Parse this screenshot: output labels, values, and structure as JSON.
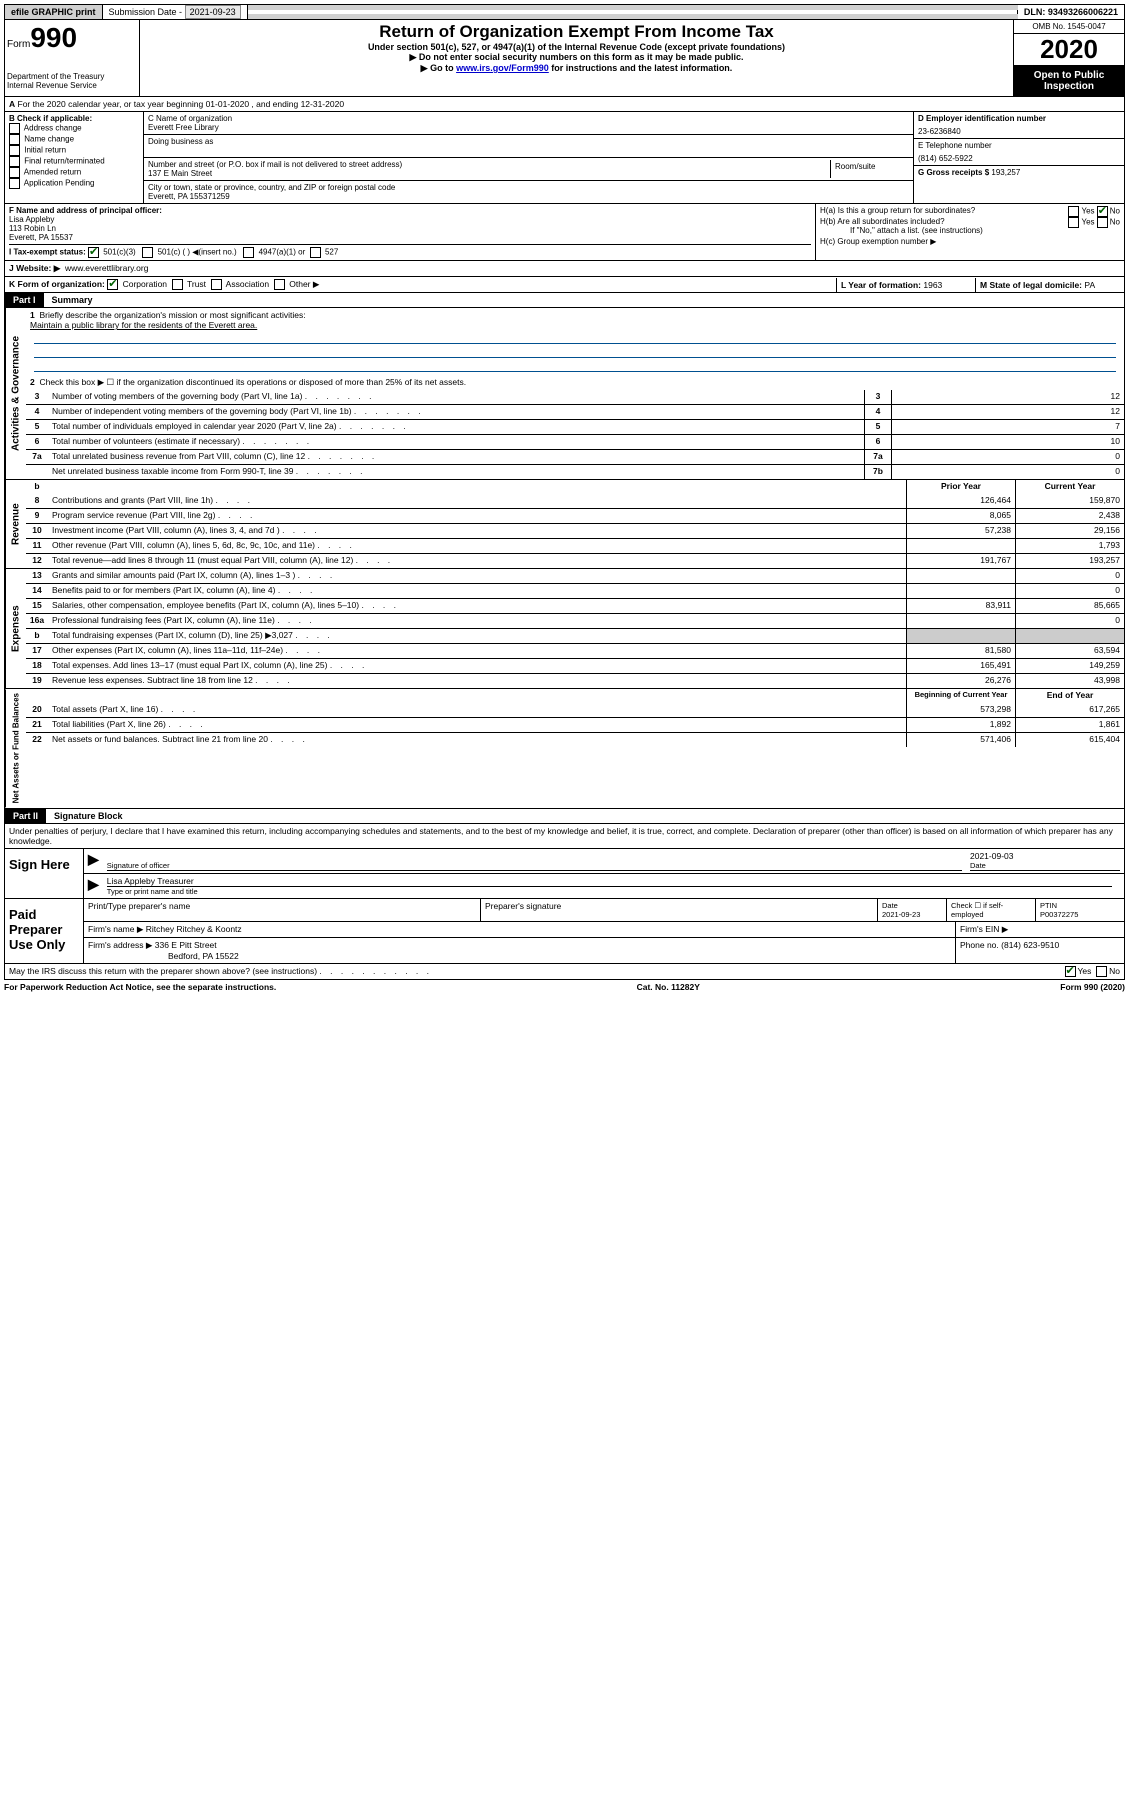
{
  "topbar": {
    "efile": "efile GRAPHIC print",
    "submission_label": "Submission Date -",
    "submission_date": "2021-09-23",
    "dln_label": "DLN:",
    "dln": "93493266006221"
  },
  "header": {
    "form_label": "Form",
    "form_num": "990",
    "dept": "Department of the Treasury\nInternal Revenue Service",
    "title": "Return of Organization Exempt From Income Tax",
    "sub1": "Under section 501(c), 527, or 4947(a)(1) of the Internal Revenue Code (except private foundations)",
    "sub2": "▶ Do not enter social security numbers on this form as it may be made public.",
    "sub3_pre": "▶ Go to ",
    "sub3_link": "www.irs.gov/Form990",
    "sub3_post": " for instructions and the latest information.",
    "omb": "OMB No. 1545-0047",
    "year": "2020",
    "open": "Open to Public Inspection"
  },
  "lineA": "For the 2020 calendar year, or tax year beginning 01-01-2020   , and ending 12-31-2020",
  "boxB": {
    "label": "B Check if applicable:",
    "opts": [
      "Address change",
      "Name change",
      "Initial return",
      "Final return/terminated",
      "Amended return",
      "Application Pending"
    ]
  },
  "boxC": {
    "name_label": "C Name of organization",
    "name": "Everett Free Library",
    "dba_label": "Doing business as",
    "addr_label": "Number and street (or P.O. box if mail is not delivered to street address)",
    "room_label": "Room/suite",
    "addr": "137 E Main Street",
    "city_label": "City or town, state or province, country, and ZIP or foreign postal code",
    "city": "Everett, PA  155371259"
  },
  "boxD": {
    "label": "D Employer identification number",
    "ein": "23-6236840"
  },
  "boxE": {
    "label": "E Telephone number",
    "phone": "(814) 652-5922"
  },
  "boxG": {
    "label": "G Gross receipts $",
    "val": "193,257"
  },
  "boxF": {
    "label": "F  Name and address of principal officer:",
    "name": "Lisa Appleby",
    "addr1": "113 Robin Ln",
    "addr2": "Everett, PA  15537"
  },
  "boxH": {
    "a": "H(a)  Is this a group return for subordinates?",
    "b": "H(b)  Are all subordinates included?",
    "b_note": "If \"No,\" attach a list. (see instructions)",
    "c": "H(c)  Group exemption number ▶"
  },
  "lineI": {
    "label": "I  Tax-exempt status:",
    "o1": "501(c)(3)",
    "o2": "501(c) (  ) ◀(insert no.)",
    "o3": "4947(a)(1) or",
    "o4": "527"
  },
  "lineJ": {
    "label": "J  Website: ▶",
    "val": "www.everettlibrary.org"
  },
  "lineK": {
    "label": "K Form of organization:",
    "o1": "Corporation",
    "o2": "Trust",
    "o3": "Association",
    "o4": "Other ▶"
  },
  "lineL": {
    "label": "L Year of formation:",
    "val": "1963"
  },
  "lineM": {
    "label": "M State of legal domicile:",
    "val": "PA"
  },
  "part1": {
    "label": "Part I",
    "title": "Summary",
    "q1": "Briefly describe the organization's mission or most significant activities:",
    "mission": "Maintain a public library for the residents of the Everett area.",
    "q2": "Check this box ▶ ☐  if the organization discontinued its operations or disposed of more than 25% of its net assets.",
    "rows_gov": [
      {
        "n": "3",
        "d": "Number of voting members of the governing body (Part VI, line 1a)",
        "k": "3",
        "v": "12"
      },
      {
        "n": "4",
        "d": "Number of independent voting members of the governing body (Part VI, line 1b)",
        "k": "4",
        "v": "12"
      },
      {
        "n": "5",
        "d": "Total number of individuals employed in calendar year 2020 (Part V, line 2a)",
        "k": "5",
        "v": "7"
      },
      {
        "n": "6",
        "d": "Total number of volunteers (estimate if necessary)",
        "k": "6",
        "v": "10"
      },
      {
        "n": "7a",
        "d": "Total unrelated business revenue from Part VIII, column (C), line 12",
        "k": "7a",
        "v": "0"
      },
      {
        "n": "",
        "d": "Net unrelated business taxable income from Form 990-T, line 39",
        "k": "7b",
        "v": "0"
      }
    ],
    "hdr_prior": "Prior Year",
    "hdr_curr": "Current Year",
    "rows_rev": [
      {
        "n": "8",
        "d": "Contributions and grants (Part VIII, line 1h)",
        "p": "126,464",
        "c": "159,870"
      },
      {
        "n": "9",
        "d": "Program service revenue (Part VIII, line 2g)",
        "p": "8,065",
        "c": "2,438"
      },
      {
        "n": "10",
        "d": "Investment income (Part VIII, column (A), lines 3, 4, and 7d )",
        "p": "57,238",
        "c": "29,156"
      },
      {
        "n": "11",
        "d": "Other revenue (Part VIII, column (A), lines 5, 6d, 8c, 9c, 10c, and 11e)",
        "p": "",
        "c": "1,793"
      },
      {
        "n": "12",
        "d": "Total revenue—add lines 8 through 11 (must equal Part VIII, column (A), line 12)",
        "p": "191,767",
        "c": "193,257"
      }
    ],
    "rows_exp": [
      {
        "n": "13",
        "d": "Grants and similar amounts paid (Part IX, column (A), lines 1–3 )",
        "p": "",
        "c": "0"
      },
      {
        "n": "14",
        "d": "Benefits paid to or for members (Part IX, column (A), line 4)",
        "p": "",
        "c": "0"
      },
      {
        "n": "15",
        "d": "Salaries, other compensation, employee benefits (Part IX, column (A), lines 5–10)",
        "p": "83,911",
        "c": "85,665"
      },
      {
        "n": "16a",
        "d": "Professional fundraising fees (Part IX, column (A), line 11e)",
        "p": "",
        "c": "0"
      },
      {
        "n": "b",
        "d": "Total fundraising expenses (Part IX, column (D), line 25) ▶3,027",
        "p": null,
        "c": null
      },
      {
        "n": "17",
        "d": "Other expenses (Part IX, column (A), lines 11a–11d, 11f–24e)",
        "p": "81,580",
        "c": "63,594"
      },
      {
        "n": "18",
        "d": "Total expenses. Add lines 13–17 (must equal Part IX, column (A), line 25)",
        "p": "165,491",
        "c": "149,259"
      },
      {
        "n": "19",
        "d": "Revenue less expenses. Subtract line 18 from line 12",
        "p": "26,276",
        "c": "43,998"
      }
    ],
    "hdr_begin": "Beginning of Current Year",
    "hdr_end": "End of Year",
    "rows_net": [
      {
        "n": "20",
        "d": "Total assets (Part X, line 16)",
        "p": "573,298",
        "c": "617,265"
      },
      {
        "n": "21",
        "d": "Total liabilities (Part X, line 26)",
        "p": "1,892",
        "c": "1,861"
      },
      {
        "n": "22",
        "d": "Net assets or fund balances. Subtract line 21 from line 20",
        "p": "571,406",
        "c": "615,404"
      }
    ]
  },
  "part2": {
    "label": "Part II",
    "title": "Signature Block",
    "perjury": "Under penalties of perjury, I declare that I have examined this return, including accompanying schedules and statements, and to the best of my knowledge and belief, it is true, correct, and complete. Declaration of preparer (other than officer) is based on all information of which preparer has any knowledge.",
    "sign_here": "Sign Here",
    "sig_officer": "Signature of officer",
    "sig_date": "2021-09-03",
    "date_label": "Date",
    "officer_name": "Lisa Appleby  Treasurer",
    "type_label": "Type or print name and title",
    "paid": "Paid Preparer Use Only",
    "prep_name_label": "Print/Type preparer's name",
    "prep_sig_label": "Preparer's signature",
    "prep_date_label": "Date",
    "prep_date": "2021-09-23",
    "check_self": "Check ☐ if self-employed",
    "ptin_label": "PTIN",
    "ptin": "P00372275",
    "firm_name_label": "Firm's name    ▶",
    "firm_name": "Ritchey Ritchey & Koontz",
    "firm_ein_label": "Firm's EIN ▶",
    "firm_addr_label": "Firm's address ▶",
    "firm_addr1": "336 E Pitt Street",
    "firm_addr2": "Bedford, PA  15522",
    "firm_phone_label": "Phone no.",
    "firm_phone": "(814) 623-9510",
    "discuss": "May the IRS discuss this return with the preparer shown above? (see instructions)"
  },
  "footer": {
    "left": "For Paperwork Reduction Act Notice, see the separate instructions.",
    "mid": "Cat. No. 11282Y",
    "right": "Form 990 (2020)"
  },
  "yesno": {
    "yes": "Yes",
    "no": "No"
  }
}
